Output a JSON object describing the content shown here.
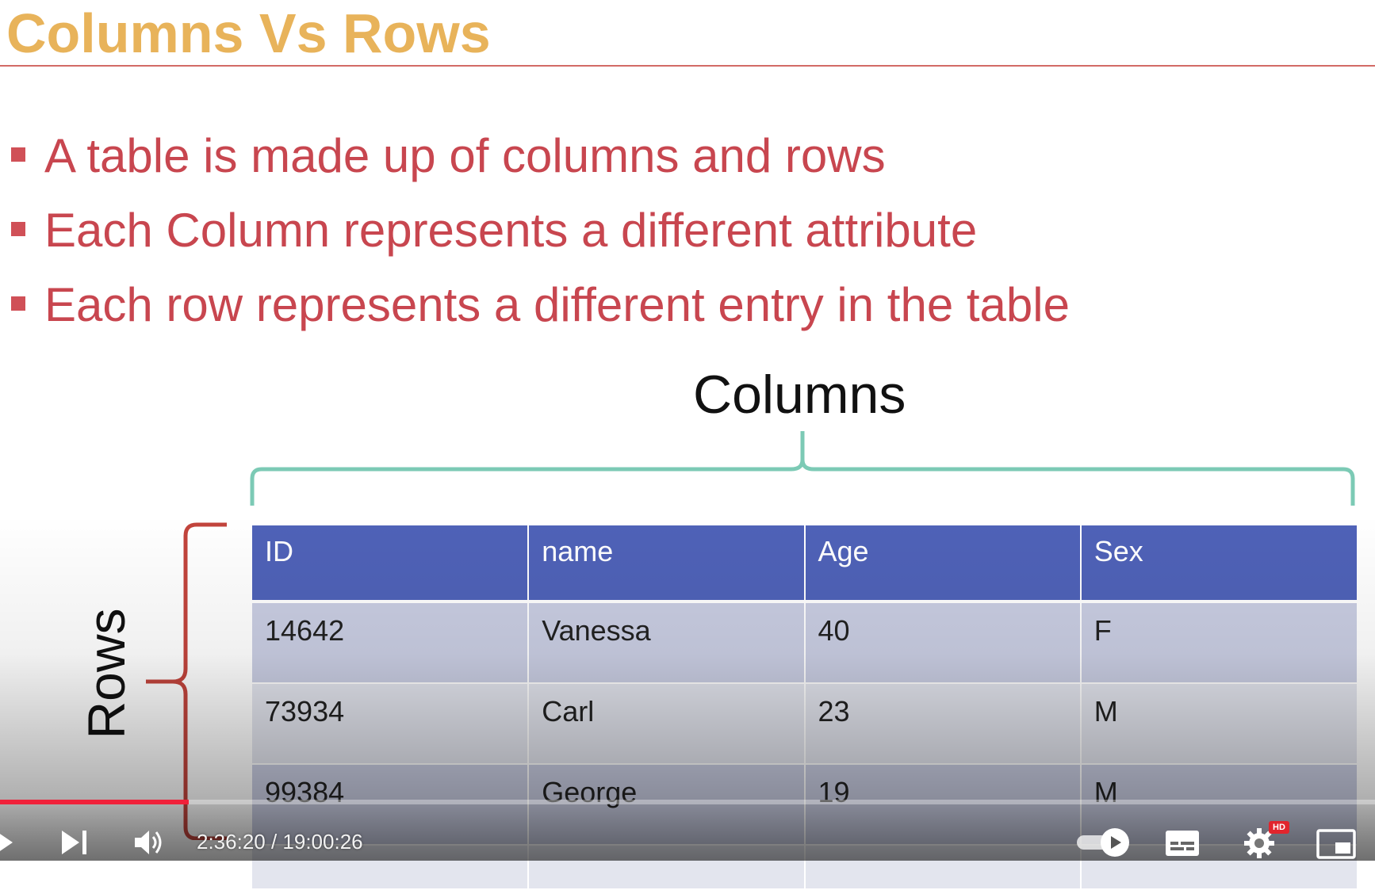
{
  "slide": {
    "title": "Columns Vs Rows",
    "bullets": [
      "A table is made up of columns and rows",
      "Each Column represents a different attribute",
      "Each row represents a different entry in the table"
    ],
    "columns_label": "Columns",
    "rows_label": "Rows"
  },
  "table": {
    "headers": [
      "ID",
      "name",
      "Age",
      "Sex"
    ],
    "rows": [
      [
        "14642",
        "Vanessa",
        "40",
        "F"
      ],
      [
        "73934",
        "Carl",
        "23",
        "M"
      ],
      [
        "99384",
        "George",
        "19",
        "M"
      ]
    ]
  },
  "player": {
    "time_display": "2:36:20 / 19:00:26",
    "progress_fraction": 0.137,
    "hd_badge": "HD",
    "icons": [
      "play-icon",
      "next-icon",
      "volume-icon",
      "autoplay-toggle-icon",
      "subtitles-icon",
      "settings-icon",
      "miniplayer-icon"
    ]
  },
  "colors": {
    "title": "#e8b35a",
    "bullets": "#c8464f",
    "header_bg": "#4f62b8",
    "columns_brace": "#7ccab5",
    "rows_brace": "#c2443c",
    "progress": "#f0213a"
  }
}
